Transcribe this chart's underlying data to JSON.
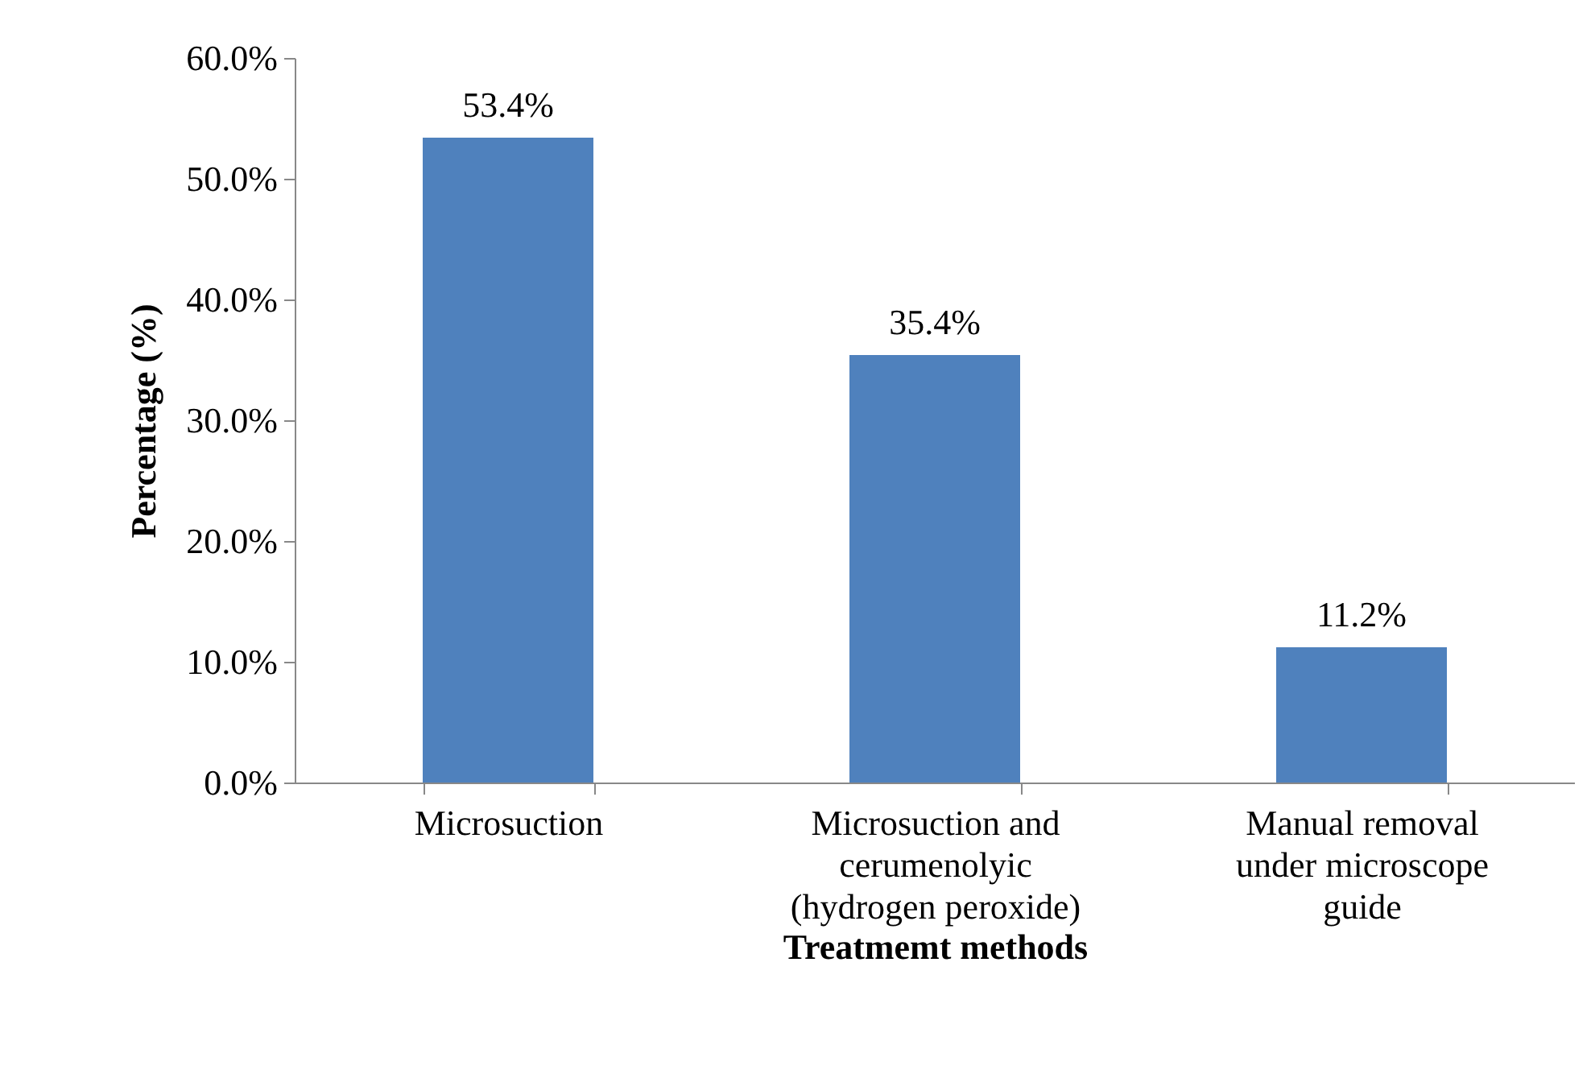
{
  "chart_data": {
    "type": "bar",
    "xlabel": "Treatmemt methods",
    "ylabel": "Percentage (%)",
    "categories": [
      "Microsuction",
      "Microsuction and cerumenolyic (hydrogen peroxide)",
      "Manual removal under microscope guide"
    ],
    "values": [
      53.4,
      35.4,
      11.2
    ],
    "value_labels": [
      "53.4%",
      "35.4%",
      "11.2%"
    ],
    "color": "#4f81bd",
    "ylim": [
      0,
      60
    ],
    "yticks": [
      {
        "value": 0,
        "label": "0.0%"
      },
      {
        "value": 10,
        "label": "10.0%"
      },
      {
        "value": 20,
        "label": "20.0%"
      },
      {
        "value": 30,
        "label": "30.0%"
      },
      {
        "value": 40,
        "label": "40.0%"
      },
      {
        "value": 50,
        "label": "50.0%"
      },
      {
        "value": 60,
        "label": "60.0%"
      }
    ],
    "grid": false
  }
}
